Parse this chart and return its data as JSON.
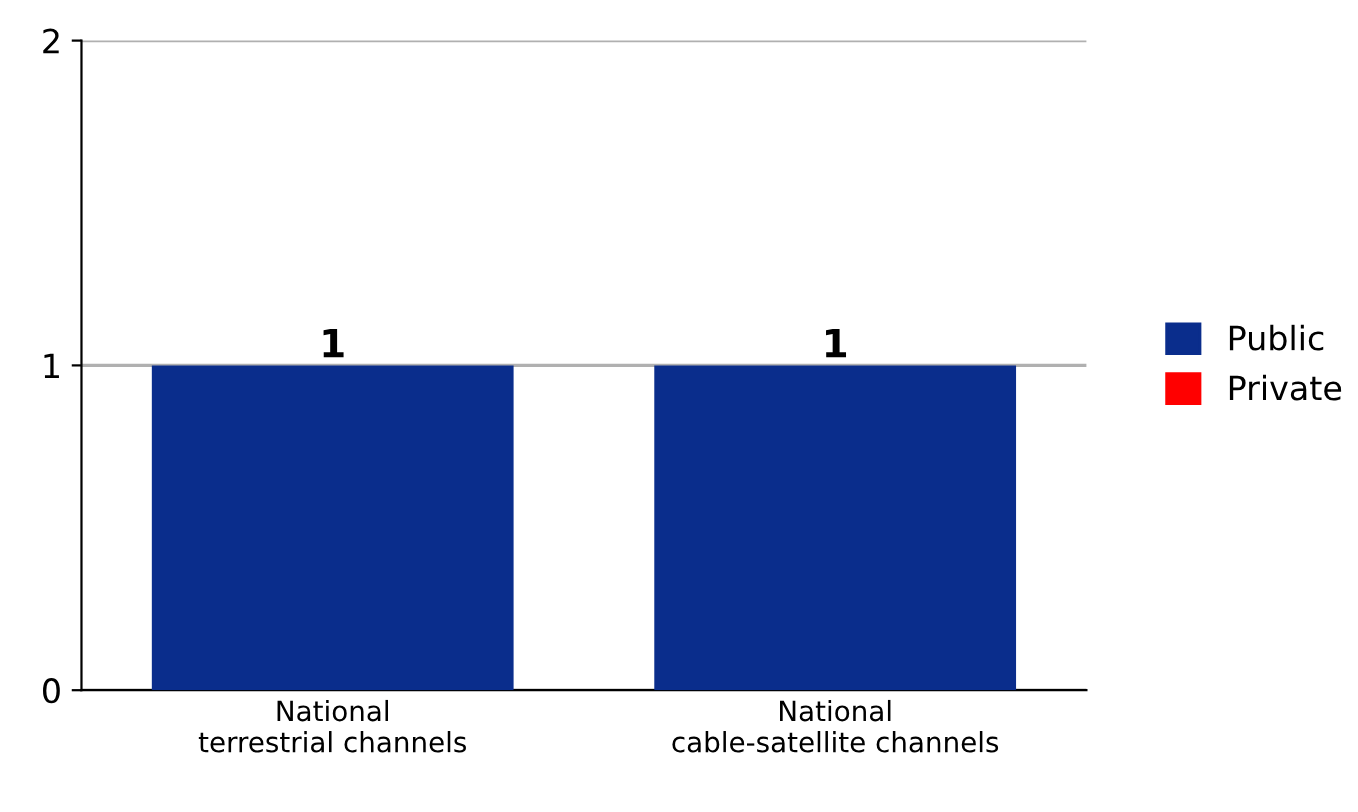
{
  "chart_data": {
    "type": "bar",
    "stacked": true,
    "categories": [
      "National\nterrestrial channels",
      "National\ncable-satellite channels"
    ],
    "series": [
      {
        "name": "Public",
        "color": "#0a2d8c",
        "values": [
          1,
          1
        ]
      },
      {
        "name": "Private",
        "color": "#ff0000",
        "values": [
          0,
          0
        ]
      }
    ],
    "totals": [
      "1",
      "1"
    ],
    "ylim": [
      0,
      2
    ],
    "yticks": [
      0,
      1,
      2
    ],
    "grid": "y",
    "legend": "right"
  }
}
